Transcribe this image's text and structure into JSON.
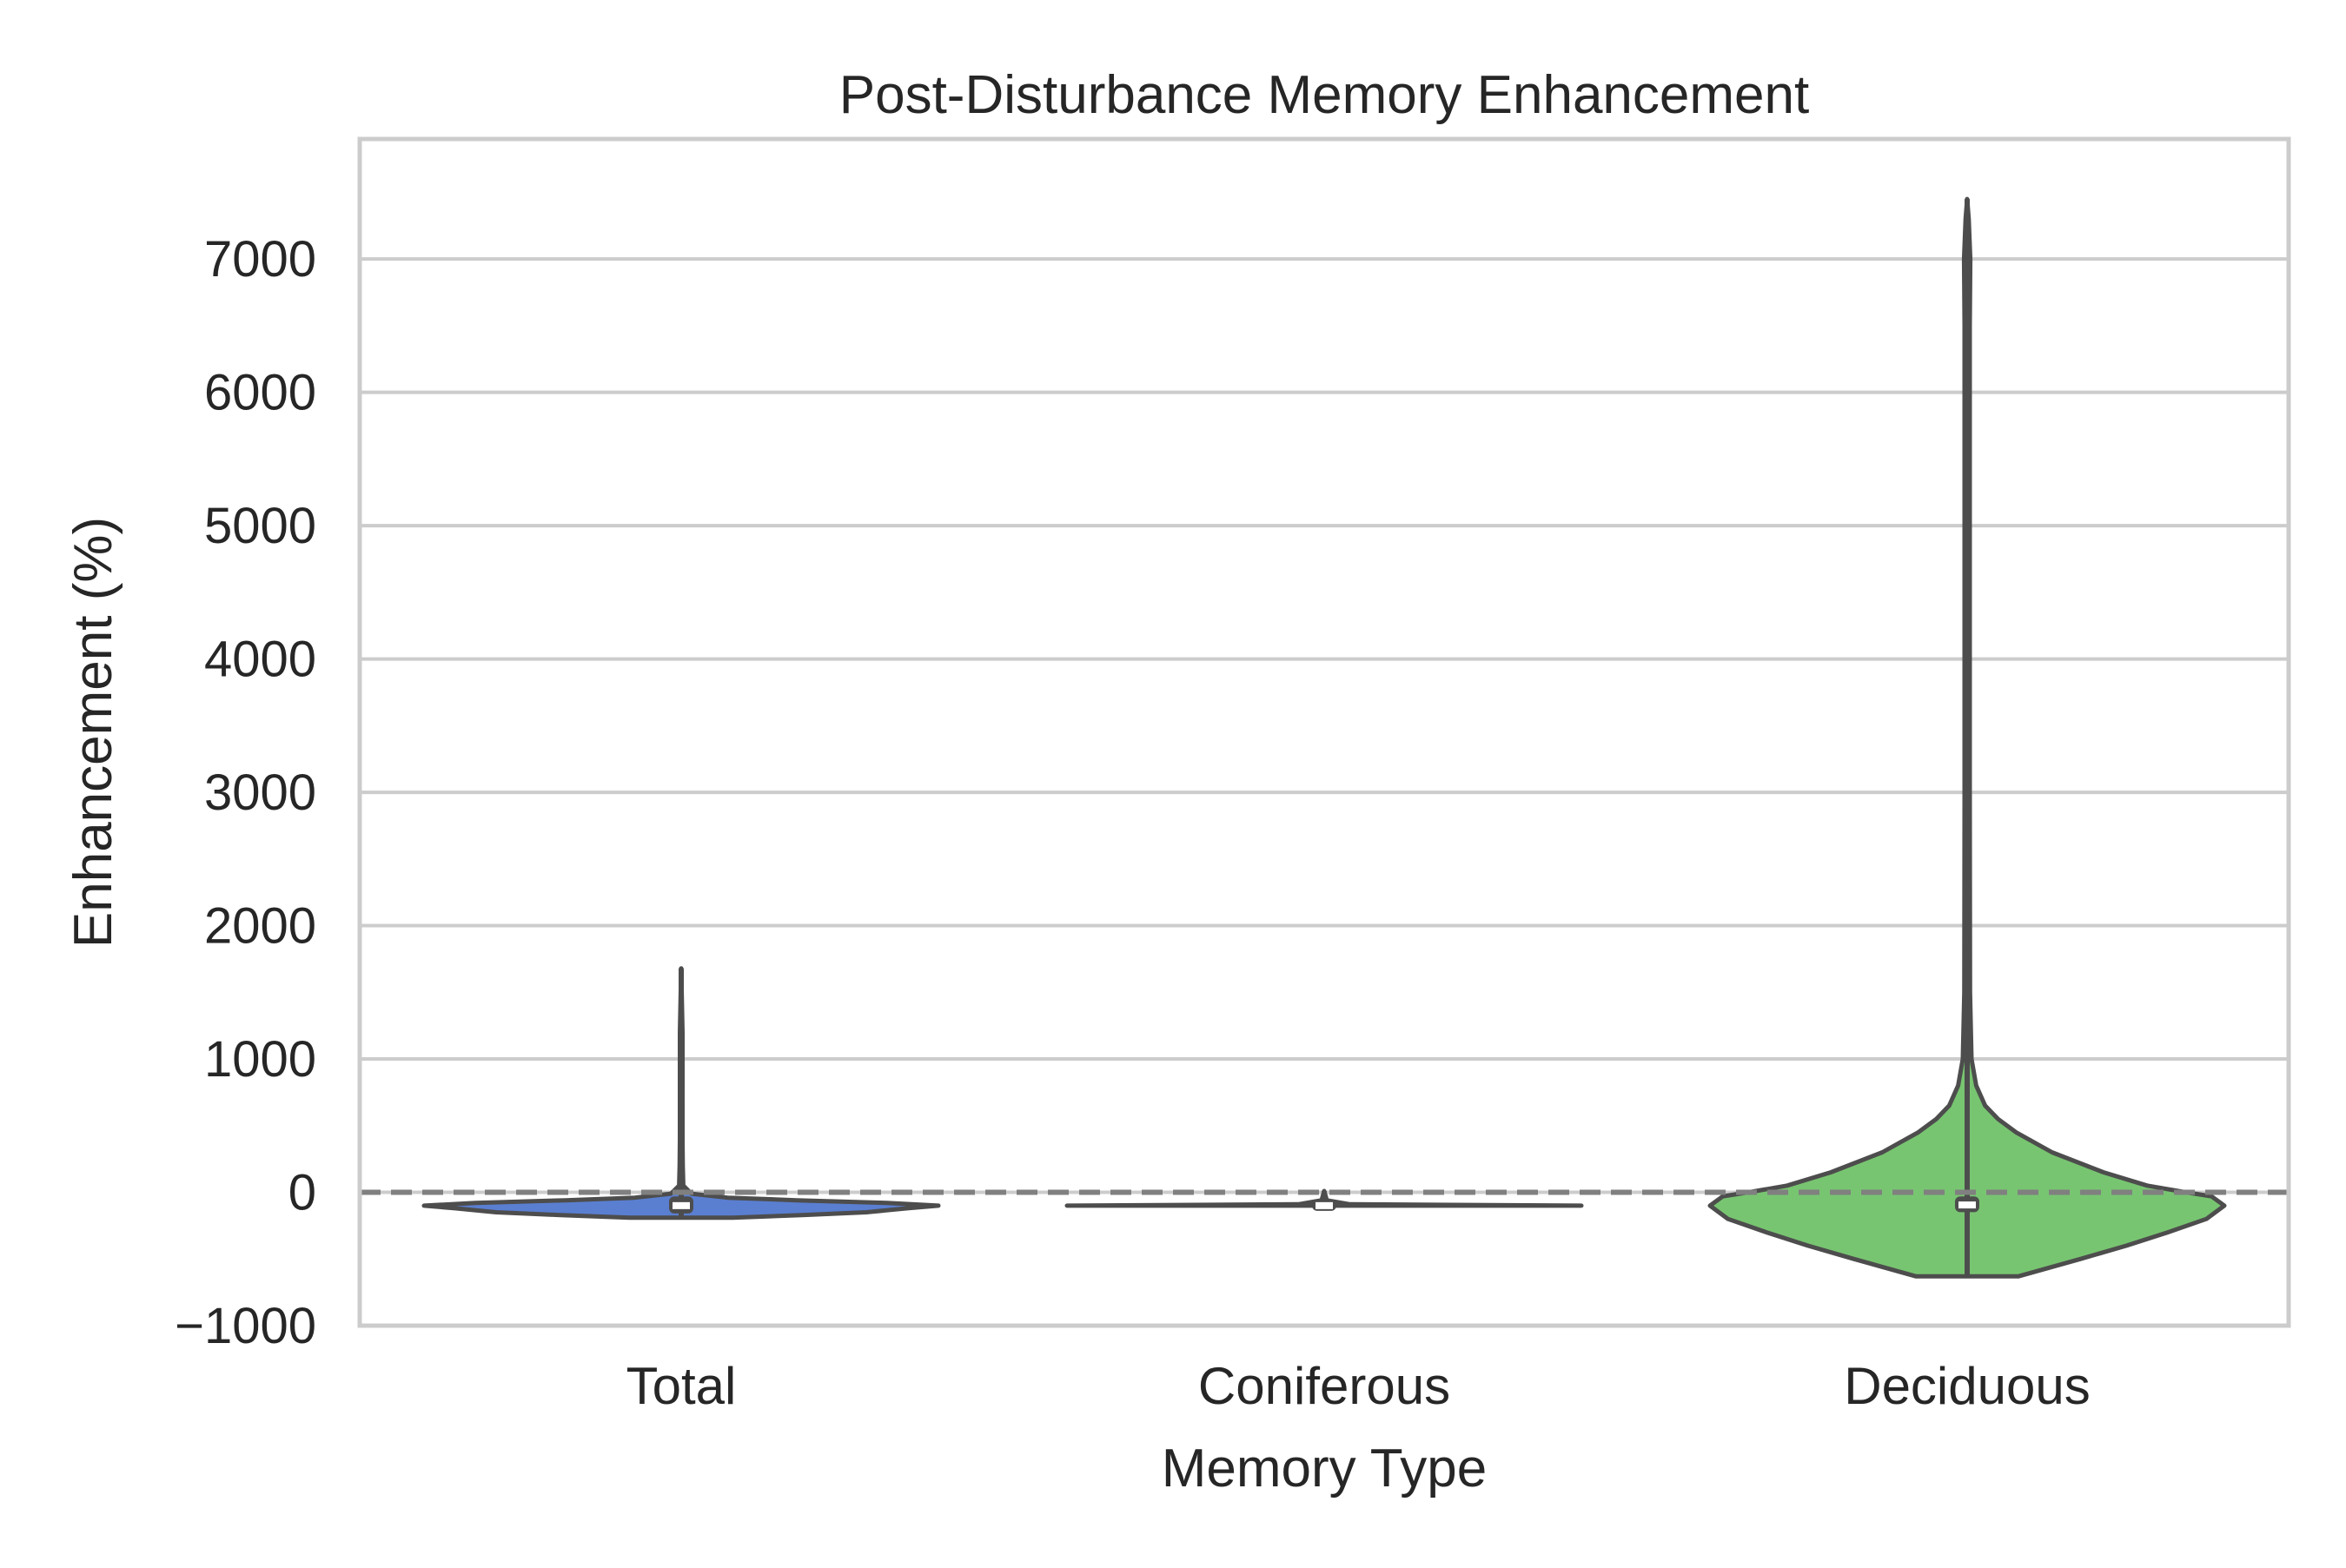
{
  "chart_data": {
    "type": "violin",
    "title": "Post-Disturbance Memory Enhancement",
    "xlabel": "Memory Type",
    "ylabel": "Enhancement (%)",
    "ylim": [
      -1000,
      7900
    ],
    "yticks": [
      -1000,
      0,
      1000,
      2000,
      3000,
      4000,
      5000,
      6000,
      7000
    ],
    "ytick_labels": [
      "−1000",
      "0",
      "1000",
      "2000",
      "3000",
      "4000",
      "5000",
      "6000",
      "7000"
    ],
    "categories": [
      "Total",
      "Coniferous",
      "Deciduous"
    ],
    "grid": "horizontal",
    "reference_line": {
      "y": 0,
      "style": "dashed",
      "color": "#808080"
    },
    "series": [
      {
        "category": "Total",
        "color": "#5a7fd1",
        "min": -190,
        "max": 1680,
        "q1": -120,
        "median": -100,
        "q3": -70,
        "density": [
          [
            -190,
            0.2
          ],
          [
            -170,
            0.48
          ],
          [
            -150,
            0.72
          ],
          [
            -120,
            0.88
          ],
          [
            -100,
            1.0
          ],
          [
            -80,
            0.8
          ],
          [
            -60,
            0.45
          ],
          [
            -40,
            0.18
          ],
          [
            -10,
            0.04
          ],
          [
            50,
            0.008
          ],
          [
            200,
            0.006
          ],
          [
            400,
            0.005
          ],
          [
            800,
            0.005
          ],
          [
            1200,
            0.005
          ],
          [
            1680,
            0.0
          ]
        ]
      },
      {
        "category": "Coniferous",
        "color": "#ffffff",
        "min": -100,
        "max": 10,
        "q1": -100,
        "median": -100,
        "q3": -95,
        "density": [
          [
            -100,
            1.0
          ],
          [
            -90,
            0.1
          ],
          [
            -60,
            0.01
          ],
          [
            10,
            0.0
          ]
        ]
      },
      {
        "category": "Deciduous",
        "color": "#78c571",
        "min": -630,
        "max": 7450,
        "q1": -110,
        "median": -95,
        "q3": -70,
        "density": [
          [
            -630,
            0.2
          ],
          [
            -500,
            0.44
          ],
          [
            -400,
            0.62
          ],
          [
            -300,
            0.78
          ],
          [
            -200,
            0.93
          ],
          [
            -100,
            1.0
          ],
          [
            -30,
            0.95
          ],
          [
            0,
            0.85
          ],
          [
            50,
            0.7
          ],
          [
            150,
            0.53
          ],
          [
            300,
            0.33
          ],
          [
            450,
            0.19
          ],
          [
            550,
            0.12
          ],
          [
            650,
            0.07
          ],
          [
            800,
            0.035
          ],
          [
            1000,
            0.017
          ],
          [
            1500,
            0.011
          ],
          [
            3000,
            0.01
          ],
          [
            5000,
            0.01
          ],
          [
            6500,
            0.01
          ],
          [
            7000,
            0.012
          ],
          [
            7300,
            0.006
          ],
          [
            7450,
            0.0
          ]
        ]
      }
    ]
  }
}
